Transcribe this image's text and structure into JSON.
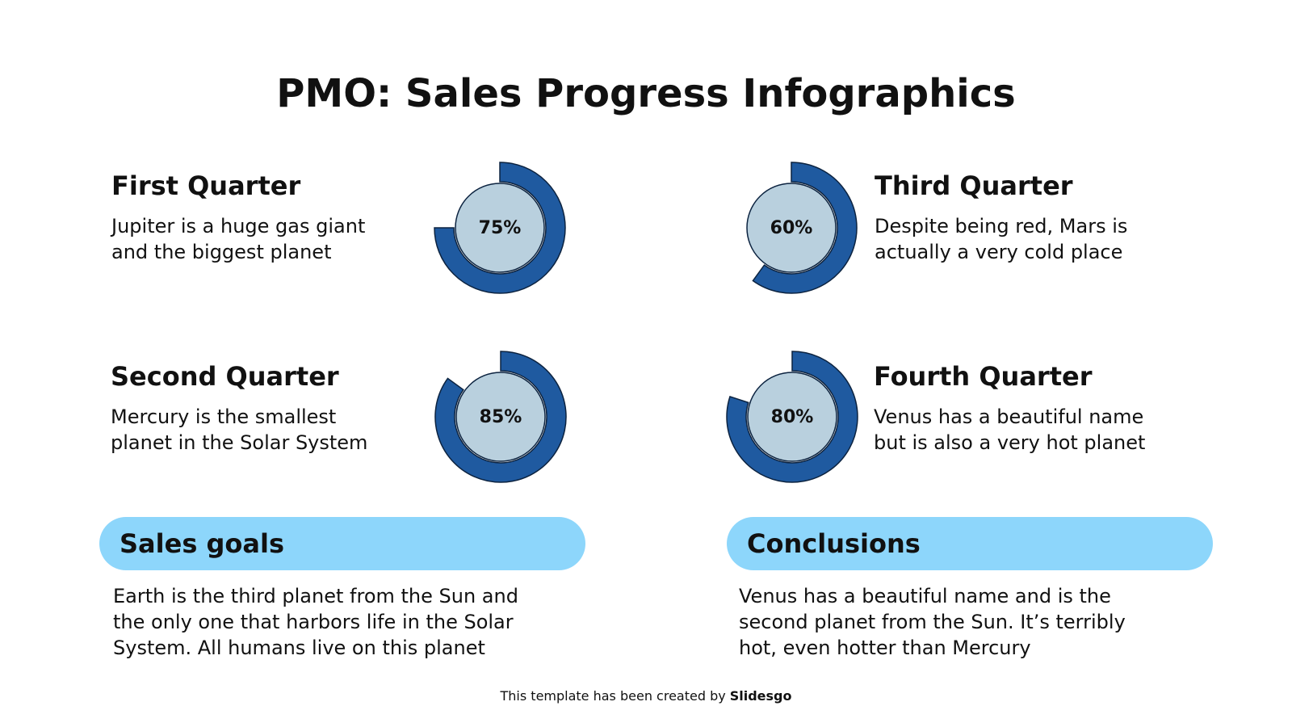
{
  "title": "PMO: Sales Progress Infographics",
  "quarters": [
    {
      "title": "First Quarter",
      "text": [
        "Jupiter is a huge gas giant",
        "and  the biggest planet"
      ],
      "value": 75,
      "value_label": "75%"
    },
    {
      "title": "Second Quarter",
      "text": [
        "Mercury is the smallest",
        "planet in the Solar System"
      ],
      "value": 85,
      "value_label": "85%"
    },
    {
      "title": "Third Quarter",
      "text": [
        "Despite being red, Mars is",
        "actually a very cold place"
      ],
      "value": 60,
      "value_label": "60%"
    },
    {
      "title": "Fourth Quarter",
      "text": [
        "Venus has a beautiful name",
        "but is also a very hot planet"
      ],
      "value": 80,
      "value_label": "80%"
    }
  ],
  "sections": [
    {
      "heading": "Sales goals",
      "text": [
        "Earth is the third planet from the Sun and",
        "the only one that harbors life in the Solar",
        "System. All humans live on this planet"
      ]
    },
    {
      "heading": "Conclusions",
      "text": [
        "Venus has a beautiful name and is the",
        "second planet from the Sun. It’s terribly",
        "hot, even hotter than Mercury"
      ]
    }
  ],
  "footer": {
    "text": "This template has been created by",
    "brand": "Slidesgo"
  }
}
